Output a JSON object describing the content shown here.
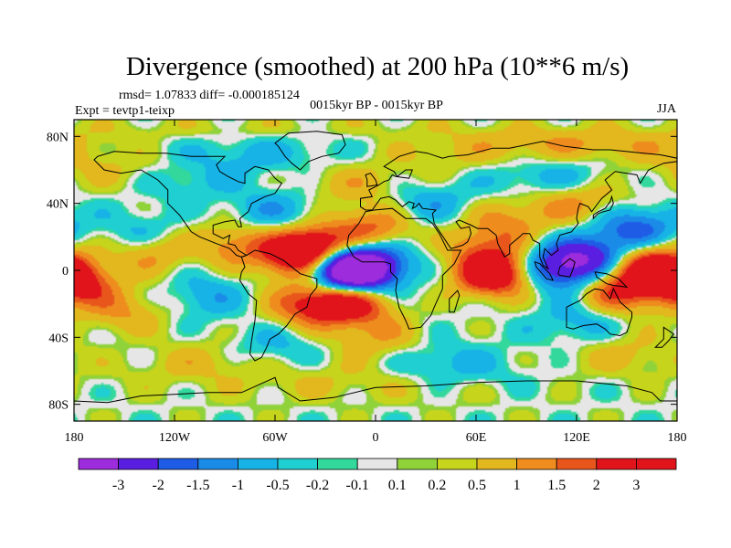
{
  "chart_data": {
    "type": "heatmap",
    "title": "Divergence (smoothed) at 200 hPa (10**6 m/s)",
    "stats_text": "rmsd= 1.07833 diff= -0.000185124",
    "left_label": "Expt = tevtp1-teixp",
    "center_label": "0015kyr BP - 0015kyr BP",
    "right_label": "JJA",
    "x_ticks": [
      "180",
      "120W",
      "60W",
      "0",
      "60E",
      "120E",
      "180"
    ],
    "x_tick_values": [
      -180,
      -120,
      -60,
      0,
      60,
      120,
      180
    ],
    "y_ticks": [
      "80N",
      "40N",
      "0",
      "40S",
      "80S"
    ],
    "y_tick_values": [
      80,
      40,
      0,
      -40,
      -80
    ],
    "xlim": [
      -180,
      180
    ],
    "ylim": [
      -90,
      90
    ],
    "colorbar": {
      "labels": [
        "-3",
        "-2",
        "-1.5",
        "-1",
        "-0.5",
        "-0.2",
        "-0.1",
        "0.1",
        "0.2",
        "0.5",
        "1",
        "1.5",
        "2",
        "3"
      ],
      "levels": [
        -3,
        -2,
        -1.5,
        -1,
        -0.5,
        -0.2,
        -0.1,
        0.1,
        0.2,
        0.5,
        1,
        1.5,
        2,
        3
      ],
      "colors": [
        "#9c2cdc",
        "#5a1ee0",
        "#1f5ce6",
        "#1b8be8",
        "#17b3e6",
        "#20cfd2",
        "#33d89c",
        "#e6e6e6",
        "#8fd23a",
        "#c6d41c",
        "#e2b81e",
        "#ee8c1e",
        "#e8561c",
        "#e0141a",
        "#e0141a"
      ]
    },
    "field_features": [
      {
        "lon": -20,
        "lat": 2,
        "value": -3.4
      },
      {
        "lon": -12,
        "lat": -4,
        "value": -2.6
      },
      {
        "lon": 0,
        "lat": 4,
        "value": -2.0
      },
      {
        "lon": 110,
        "lat": 2,
        "value": -2.6
      },
      {
        "lon": 130,
        "lat": 8,
        "value": -2.0
      },
      {
        "lon": 155,
        "lat": 25,
        "value": -1.8
      },
      {
        "lon": -100,
        "lat": -15,
        "value": -0.9
      },
      {
        "lon": -140,
        "lat": 20,
        "value": -1.1
      },
      {
        "lon": -60,
        "lat": 35,
        "value": -1.0
      },
      {
        "lon": 30,
        "lat": 40,
        "value": -1.0
      },
      {
        "lon": 100,
        "lat": 55,
        "value": -0.9
      },
      {
        "lon": 120,
        "lat": -30,
        "value": -0.8
      },
      {
        "lon": 40,
        "lat": -55,
        "value": -0.8
      },
      {
        "lon": -120,
        "lat": 55,
        "value": -0.7
      },
      {
        "lon": -60,
        "lat": -45,
        "value": -0.7
      },
      {
        "lon": -75,
        "lat": 70,
        "value": -0.7
      },
      {
        "lon": -35,
        "lat": 13,
        "value": 3.3
      },
      {
        "lon": -50,
        "lat": 8,
        "value": 2.0
      },
      {
        "lon": -15,
        "lat": -18,
        "value": 3.0
      },
      {
        "lon": -40,
        "lat": -20,
        "value": 2.0
      },
      {
        "lon": 0,
        "lat": 25,
        "value": 1.6
      },
      {
        "lon": 70,
        "lat": -2,
        "value": 3.4
      },
      {
        "lon": 65,
        "lat": 15,
        "value": 1.2
      },
      {
        "lon": 165,
        "lat": 2,
        "value": 2.9
      },
      {
        "lon": -178,
        "lat": -8,
        "value": 2.4
      },
      {
        "lon": 145,
        "lat": -12,
        "value": 2.0
      },
      {
        "lon": -135,
        "lat": 12,
        "value": 1.5
      },
      {
        "lon": -85,
        "lat": 15,
        "value": 1.3
      },
      {
        "lon": -150,
        "lat": -25,
        "value": 1.0
      },
      {
        "lon": 120,
        "lat": 40,
        "value": 1.2
      },
      {
        "lon": 80,
        "lat": 30,
        "value": 1.0
      },
      {
        "lon": -10,
        "lat": 50,
        "value": 0.9
      },
      {
        "lon": 0,
        "lat": -40,
        "value": 0.9
      },
      {
        "lon": -100,
        "lat": -55,
        "value": 0.8
      },
      {
        "lon": -150,
        "lat": 60,
        "value": 0.8
      },
      {
        "lon": 60,
        "lat": 70,
        "value": 0.7
      },
      {
        "lon": 150,
        "lat": 75,
        "value": 0.7
      },
      {
        "lon": 150,
        "lat": -50,
        "value": 0.7
      },
      {
        "lon": -10,
        "lat": -65,
        "value": 0.6
      }
    ]
  }
}
